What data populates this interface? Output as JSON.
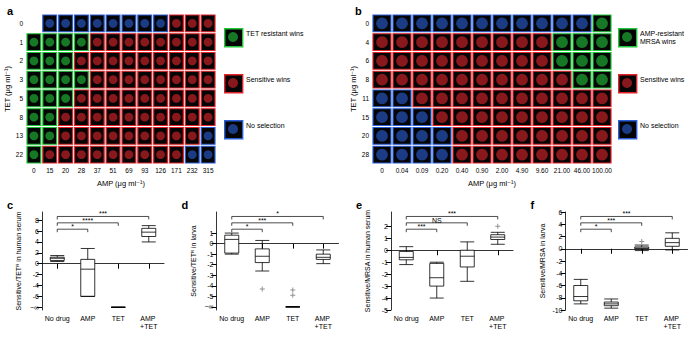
{
  "chart_data": [
    {
      "type": "heatmap",
      "title": "a",
      "xlabel": "AMP (μg ml⁻¹)",
      "ylabel": "TET (μg ml⁻¹)",
      "x": [
        "0",
        "15",
        "20",
        "28",
        "37",
        "51",
        "69",
        "93",
        "126",
        "171",
        "232",
        "315"
      ],
      "y": [
        "0",
        "1",
        "2",
        "3",
        "5",
        "8",
        "13",
        "22"
      ],
      "outcomes": [
        {
          "label": "TET resistant wins",
          "color": "#22c53a"
        },
        {
          "label": "Sensitive wins",
          "color": "#e0242a"
        },
        {
          "label": "No selection",
          "color": "#2a5fd8"
        }
      ],
      "cells": [
        [
          null,
          "No selection",
          "No selection",
          "No selection",
          "No selection",
          "No selection",
          "No selection",
          "No selection",
          "No selection",
          "Sensitive wins",
          "Sensitive wins",
          "Sensitive wins"
        ],
        [
          "TET resistant wins",
          "TET resistant wins",
          "TET resistant wins",
          "TET resistant wins",
          "Sensitive wins",
          "Sensitive wins",
          "Sensitive wins",
          "Sensitive wins",
          "Sensitive wins",
          "Sensitive wins",
          "Sensitive wins",
          "Sensitive wins"
        ],
        [
          "TET resistant wins",
          "TET resistant wins",
          "TET resistant wins",
          "Sensitive wins",
          "Sensitive wins",
          "Sensitive wins",
          "Sensitive wins",
          "Sensitive wins",
          "Sensitive wins",
          "Sensitive wins",
          "Sensitive wins",
          "Sensitive wins"
        ],
        [
          "TET resistant wins",
          "TET resistant wins",
          "TET resistant wins",
          "TET resistant wins",
          "Sensitive wins",
          "Sensitive wins",
          "Sensitive wins",
          "Sensitive wins",
          "Sensitive wins",
          "Sensitive wins",
          "Sensitive wins",
          "Sensitive wins"
        ],
        [
          "TET resistant wins",
          "TET resistant wins",
          "TET resistant wins",
          "Sensitive wins",
          "Sensitive wins",
          "Sensitive wins",
          "Sensitive wins",
          "Sensitive wins",
          "Sensitive wins",
          "Sensitive wins",
          "Sensitive wins",
          "Sensitive wins"
        ],
        [
          "TET resistant wins",
          "TET resistant wins",
          "Sensitive wins",
          "Sensitive wins",
          "Sensitive wins",
          "Sensitive wins",
          "Sensitive wins",
          "Sensitive wins",
          "Sensitive wins",
          "Sensitive wins",
          "Sensitive wins",
          "Sensitive wins"
        ],
        [
          "TET resistant wins",
          "TET resistant wins",
          "Sensitive wins",
          "Sensitive wins",
          "Sensitive wins",
          "Sensitive wins",
          "Sensitive wins",
          "Sensitive wins",
          "Sensitive wins",
          "Sensitive wins",
          "Sensitive wins",
          "No selection"
        ],
        [
          "TET resistant wins",
          "Sensitive wins",
          "Sensitive wins",
          "Sensitive wins",
          "Sensitive wins",
          "Sensitive wins",
          "Sensitive wins",
          "Sensitive wins",
          "Sensitive wins",
          "Sensitive wins",
          "No selection",
          "No selection"
        ]
      ]
    },
    {
      "type": "heatmap",
      "title": "b",
      "xlabel": "AMP (μg ml⁻¹)",
      "ylabel": "TET (μg ml⁻¹)",
      "x": [
        "0",
        "0.04",
        "0.09",
        "0.20",
        "0.40",
        "0.90",
        "2.00",
        "4.90",
        "9.60",
        "21.00",
        "46.00",
        "100.00"
      ],
      "y": [
        "0",
        "4",
        "6",
        "8",
        "11",
        "15",
        "20",
        "28"
      ],
      "outcomes": [
        {
          "label": "AMP-resistant MRSA wins",
          "color": "#22c53a"
        },
        {
          "label": "Sensitive wins",
          "color": "#e0242a"
        },
        {
          "label": "No selection",
          "color": "#2a5fd8"
        }
      ],
      "cells": [
        [
          "No selection",
          "No selection",
          "No selection",
          "No selection",
          "No selection",
          "No selection",
          "No selection",
          "No selection",
          "No selection",
          "No selection",
          "No selection",
          "AMP-resistant MRSA wins"
        ],
        [
          "Sensitive wins",
          "Sensitive wins",
          "Sensitive wins",
          "Sensitive wins",
          "Sensitive wins",
          "Sensitive wins",
          "Sensitive wins",
          "Sensitive wins",
          "Sensitive wins",
          "AMP-resistant MRSA wins",
          "AMP-resistant MRSA wins",
          "AMP-resistant MRSA wins"
        ],
        [
          "Sensitive wins",
          "Sensitive wins",
          "Sensitive wins",
          "Sensitive wins",
          "Sensitive wins",
          "Sensitive wins",
          "Sensitive wins",
          "Sensitive wins",
          "Sensitive wins",
          "AMP-resistant MRSA wins",
          "AMP-resistant MRSA wins",
          "AMP-resistant MRSA wins"
        ],
        [
          "Sensitive wins",
          "Sensitive wins",
          "Sensitive wins",
          "Sensitive wins",
          "Sensitive wins",
          "Sensitive wins",
          "Sensitive wins",
          "Sensitive wins",
          "Sensitive wins",
          "Sensitive wins",
          "AMP-resistant MRSA wins",
          "AMP-resistant MRSA wins"
        ],
        [
          "No selection",
          "No selection",
          "Sensitive wins",
          "Sensitive wins",
          "Sensitive wins",
          "Sensitive wins",
          "Sensitive wins",
          "Sensitive wins",
          "Sensitive wins",
          "Sensitive wins",
          "Sensitive wins",
          "Sensitive wins"
        ],
        [
          "No selection",
          "No selection",
          "No selection",
          "Sensitive wins",
          "Sensitive wins",
          "Sensitive wins",
          "Sensitive wins",
          "Sensitive wins",
          "Sensitive wins",
          "Sensitive wins",
          "Sensitive wins",
          "Sensitive wins"
        ],
        [
          "No selection",
          "No selection",
          "No selection",
          "No selection",
          "Sensitive wins",
          "Sensitive wins",
          "Sensitive wins",
          "Sensitive wins",
          "Sensitive wins",
          "Sensitive wins",
          "Sensitive wins",
          "Sensitive wins"
        ],
        [
          "No selection",
          "No selection",
          "No selection",
          "No selection",
          "Sensitive wins",
          "Sensitive wins",
          "Sensitive wins",
          "Sensitive wins",
          "Sensitive wins",
          "Sensitive wins",
          "Sensitive wins",
          "Sensitive wins"
        ]
      ]
    },
    {
      "type": "boxplot",
      "title": "c",
      "ylabel": "Sensitive/TETᴿ in human serum",
      "color": "#000000",
      "categories": [
        "No drug",
        "AMP",
        "TET",
        "AMP +TET"
      ],
      "values": [
        [
          0.4,
          0.6,
          1.0,
          1.2,
          1.5
        ],
        [
          -6,
          -6,
          -1,
          0.8,
          2.8
        ],
        [
          -8,
          -8,
          -8,
          -8,
          -8
        ],
        [
          4,
          5,
          5.8,
          6.5,
          7
        ]
      ],
      "outliers": [
        [],
        [],
        [],
        []
      ],
      "ylim": [
        -8.5,
        9.5
      ],
      "yticks": [
        {
          "value": -8,
          "label": "−∞"
        },
        -6,
        -4,
        -2,
        0,
        2,
        4,
        6,
        8
      ],
      "comparisons": [
        {
          "pair": [
            "No drug",
            "AMP"
          ],
          "label": "*"
        },
        {
          "pair": [
            "No drug",
            "TET"
          ],
          "label": "****"
        },
        {
          "pair": [
            "No drug",
            "AMP +TET"
          ],
          "label": "***"
        }
      ]
    },
    {
      "type": "boxplot",
      "title": "d",
      "ylabel": "Sensitive/TETᴿ in larva",
      "color": "#000000",
      "categories": [
        "No drug",
        "AMP",
        "TET",
        "AMP +TET"
      ],
      "values": [
        [
          -1,
          -0.9,
          0.4,
          0.8,
          1
        ],
        [
          -2.6,
          -1.8,
          -1.2,
          -0.5,
          0.3
        ],
        [
          -6,
          -6,
          -6,
          -6,
          -6
        ],
        [
          -1.9,
          -1.5,
          -1.3,
          -1.0,
          -0.6
        ]
      ],
      "outliers": [
        [],
        [
          -4.3
        ],
        [
          -4.4,
          -4.9
        ],
        []
      ],
      "ylim": [
        -6.3,
        3
      ],
      "yticks": [
        {
          "value": -6,
          "label": "−∞"
        },
        -5,
        -4,
        -3,
        -2,
        -1,
        0,
        1
      ],
      "comparisons": [
        {
          "pair": [
            "No drug",
            "AMP"
          ],
          "label": "*"
        },
        {
          "pair": [
            "No drug",
            "TET"
          ],
          "label": "***"
        },
        {
          "pair": [
            "No drug",
            "AMP +TET"
          ],
          "label": "*"
        }
      ]
    },
    {
      "type": "boxplot",
      "title": "e",
      "ylabel": "Sensitive/MRSA in human serum",
      "color": "#000000",
      "categories": [
        "No drug",
        "AMP",
        "TET",
        "AMP +TET"
      ],
      "values": [
        [
          -1.2,
          -0.8,
          -0.6,
          -0.1,
          0.3
        ],
        [
          -4,
          -3,
          -2.3,
          -1.1,
          -1
        ],
        [
          -2.6,
          -1.4,
          -0.5,
          0,
          0.7
        ],
        [
          0.5,
          0.9,
          1.1,
          1.3,
          1.5
        ]
      ],
      "outliers": [
        [],
        [],
        [],
        [
          2
        ]
      ],
      "ylim": [
        -5,
        3.2
      ],
      "yticks": [
        -5,
        -4,
        -3,
        -2,
        -1,
        0,
        1,
        2
      ],
      "comparisons": [
        {
          "pair": [
            "No drug",
            "AMP"
          ],
          "label": "***"
        },
        {
          "pair": [
            "No drug",
            "TET"
          ],
          "label": "NS"
        },
        {
          "pair": [
            "No drug",
            "AMP +TET"
          ],
          "label": "***"
        }
      ]
    },
    {
      "type": "boxplot",
      "title": "f",
      "ylabel": "Sensitive/MRSA in larva",
      "color": "#000000",
      "categories": [
        "No drug",
        "AMP",
        "TET",
        "AMP +TET"
      ],
      "values": [
        [
          -9,
          -8.5,
          -7.8,
          -6,
          -5
        ],
        [
          -9.7,
          -9.3,
          -9,
          -8.7,
          -8.2
        ],
        [
          -0.3,
          0,
          0.1,
          0.3,
          0.6
        ],
        [
          -0.2,
          0.4,
          1,
          1.7,
          2.6
        ]
      ],
      "outliers": [
        [],
        [],
        [
          1.2
        ],
        []
      ],
      "ylim": [
        -10,
        6
      ],
      "yticks": [
        -10,
        -8,
        -6,
        -4,
        -2,
        0,
        2,
        4,
        6
      ],
      "comparisons": [
        {
          "pair": [
            "No drug",
            "AMP"
          ],
          "label": "*"
        },
        {
          "pair": [
            "No drug",
            "TET"
          ],
          "label": "***"
        },
        {
          "pair": [
            "No drug",
            "AMP +TET"
          ],
          "label": "***"
        }
      ]
    }
  ]
}
